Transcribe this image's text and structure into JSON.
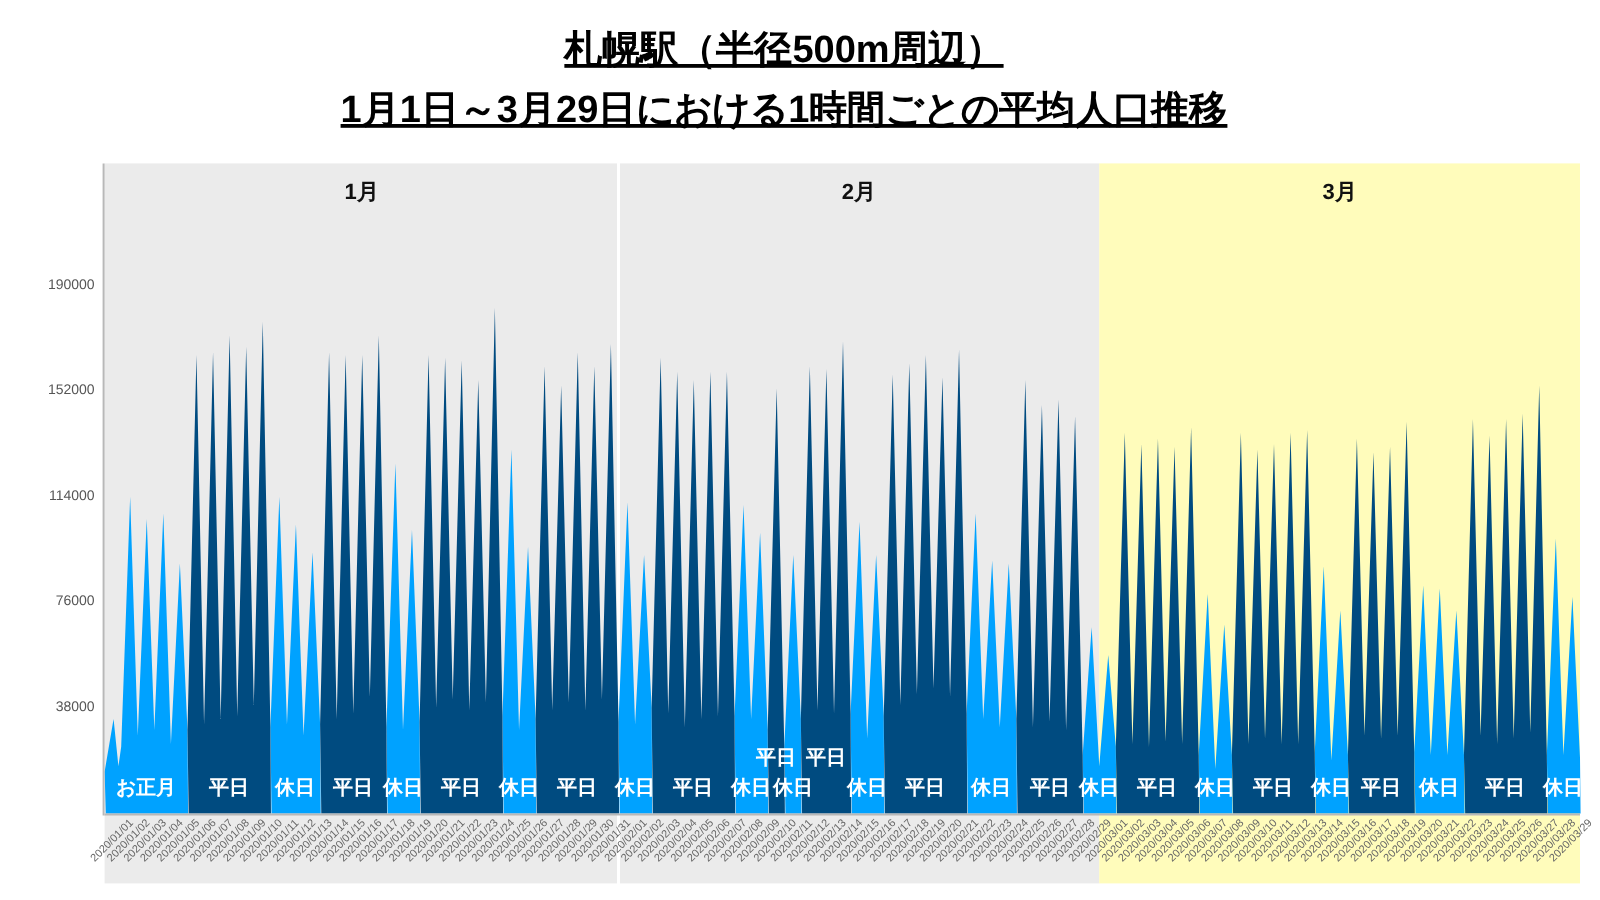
{
  "chart_data": {
    "type": "area",
    "title": "札幌駅（半径500m周辺）",
    "subtitle": "1月1日～3月29日における1時間ごとの平均人口推移",
    "xlim": [
      "2020-01-01T00:00",
      "2020-03-30T00:00"
    ],
    "ylim": [
      0,
      234000
    ],
    "yticks": [
      38000,
      76000,
      114000,
      152000,
      190000
    ],
    "xticks": [
      {
        "value": "2020-01-01T12:00",
        "label": "2020/01/01"
      },
      {
        "value": "2020-01-02T12:00",
        "label": "2020/01/02"
      },
      {
        "value": "2020-01-03T12:00",
        "label": "2020/01/03"
      },
      {
        "value": "2020-01-04T12:00",
        "label": "2020/01/04"
      },
      {
        "value": "2020-01-05T12:00",
        "label": "2020/01/05"
      },
      {
        "value": "2020-01-06T12:00",
        "label": "2020/01/06"
      },
      {
        "value": "2020-01-07T12:00",
        "label": "2020/01/07"
      },
      {
        "value": "2020-01-08T12:00",
        "label": "2020/01/08"
      },
      {
        "value": "2020-01-09T12:00",
        "label": "2020/01/09"
      },
      {
        "value": "2020-01-10T12:00",
        "label": "2020/01/10"
      },
      {
        "value": "2020-01-11T12:00",
        "label": "2020/01/11"
      },
      {
        "value": "2020-01-12T12:00",
        "label": "2020/01/12"
      },
      {
        "value": "2020-01-13T12:00",
        "label": "2020/01/13"
      },
      {
        "value": "2020-01-14T12:00",
        "label": "2020/01/14"
      },
      {
        "value": "2020-01-15T12:00",
        "label": "2020/01/15"
      },
      {
        "value": "2020-01-16T12:00",
        "label": "2020/01/16"
      },
      {
        "value": "2020-01-17T12:00",
        "label": "2020/01/17"
      },
      {
        "value": "2020-01-18T12:00",
        "label": "2020/01/18"
      },
      {
        "value": "2020-01-19T12:00",
        "label": "2020/01/19"
      },
      {
        "value": "2020-01-20T12:00",
        "label": "2020/01/20"
      },
      {
        "value": "2020-01-21T12:00",
        "label": "2020/01/21"
      },
      {
        "value": "2020-01-22T12:00",
        "label": "2020/01/22"
      },
      {
        "value": "2020-01-23T12:00",
        "label": "2020/01/23"
      },
      {
        "value": "2020-01-24T12:00",
        "label": "2020/01/24"
      },
      {
        "value": "2020-01-25T12:00",
        "label": "2020/01/25"
      },
      {
        "value": "2020-01-26T12:00",
        "label": "2020/01/26"
      },
      {
        "value": "2020-01-27T12:00",
        "label": "2020/01/27"
      },
      {
        "value": "2020-01-28T12:00",
        "label": "2020/01/28"
      },
      {
        "value": "2020-01-29T12:00",
        "label": "2020/01/29"
      },
      {
        "value": "2020-01-30T12:00",
        "label": "2020/01/30"
      },
      {
        "value": "2020-01-31T12:00",
        "label": "2020/01/31"
      },
      {
        "value": "2020-02-01T12:00",
        "label": "2020/02/01"
      },
      {
        "value": "2020-02-02T12:00",
        "label": "2020/02/02"
      },
      {
        "value": "2020-02-03T12:00",
        "label": "2020/02/03"
      },
      {
        "value": "2020-02-04T12:00",
        "label": "2020/02/04"
      },
      {
        "value": "2020-02-05T12:00",
        "label": "2020/02/05"
      },
      {
        "value": "2020-02-06T12:00",
        "label": "2020/02/06"
      },
      {
        "value": "2020-02-07T12:00",
        "label": "2020/02/07"
      },
      {
        "value": "2020-02-08T12:00",
        "label": "2020/02/08"
      },
      {
        "value": "2020-02-09T12:00",
        "label": "2020/02/09"
      },
      {
        "value": "2020-02-10T12:00",
        "label": "2020/02/10"
      },
      {
        "value": "2020-02-11T12:00",
        "label": "2020/02/11"
      },
      {
        "value": "2020-02-12T12:00",
        "label": "2020/02/12"
      },
      {
        "value": "2020-02-13T12:00",
        "label": "2020/02/13"
      },
      {
        "value": "2020-02-14T12:00",
        "label": "2020/02/14"
      },
      {
        "value": "2020-02-15T12:00",
        "label": "2020/02/15"
      },
      {
        "value": "2020-02-16T12:00",
        "label": "2020/02/16"
      },
      {
        "value": "2020-02-17T12:00",
        "label": "2020/02/17"
      },
      {
        "value": "2020-02-18T12:00",
        "label": "2020/02/18"
      },
      {
        "value": "2020-02-19T12:00",
        "label": "2020/02/19"
      },
      {
        "value": "2020-02-20T12:00",
        "label": "2020/02/20"
      },
      {
        "value": "2020-02-21T12:00",
        "label": "2020/02/21"
      },
      {
        "value": "2020-02-22T12:00",
        "label": "2020/02/22"
      },
      {
        "value": "2020-02-23T12:00",
        "label": "2020/02/23"
      },
      {
        "value": "2020-02-24T12:00",
        "label": "2020/02/24"
      },
      {
        "value": "2020-02-25T12:00",
        "label": "2020/02/25"
      },
      {
        "value": "2020-02-26T12:00",
        "label": "2020/02/26"
      },
      {
        "value": "2020-02-27T12:00",
        "label": "2020/02/27"
      },
      {
        "value": "2020-02-28T12:00",
        "label": "2020/02/28"
      },
      {
        "value": "2020-02-29T12:00",
        "label": "2020/02/29"
      },
      {
        "value": "2020-03-01T12:00",
        "label": "2020/03/01"
      },
      {
        "value": "2020-03-02T12:00",
        "label": "2020/03/02"
      },
      {
        "value": "2020-03-03T12:00",
        "label": "2020/03/03"
      },
      {
        "value": "2020-03-04T12:00",
        "label": "2020/03/04"
      },
      {
        "value": "2020-03-05T12:00",
        "label": "2020/03/05"
      },
      {
        "value": "2020-03-06T12:00",
        "label": "2020/03/06"
      },
      {
        "value": "2020-03-07T12:00",
        "label": "2020/03/07"
      },
      {
        "value": "2020-03-08T12:00",
        "label": "2020/03/08"
      },
      {
        "value": "2020-03-09T12:00",
        "label": "2020/03/09"
      },
      {
        "value": "2020-03-10T12:00",
        "label": "2020/03/10"
      },
      {
        "value": "2020-03-11T12:00",
        "label": "2020/03/11"
      },
      {
        "value": "2020-03-12T12:00",
        "label": "2020/03/12"
      },
      {
        "value": "2020-03-13T12:00",
        "label": "2020/03/13"
      },
      {
        "value": "2020-03-14T12:00",
        "label": "2020/03/14"
      },
      {
        "value": "2020-03-15T12:00",
        "label": "2020/03/15"
      },
      {
        "value": "2020-03-16T12:00",
        "label": "2020/03/16"
      },
      {
        "value": "2020-03-17T12:00",
        "label": "2020/03/17"
      },
      {
        "value": "2020-03-18T12:00",
        "label": "2020/03/18"
      },
      {
        "value": "2020-03-19T12:00",
        "label": "2020/03/19"
      },
      {
        "value": "2020-03-20T12:00",
        "label": "2020/03/20"
      },
      {
        "value": "2020-03-21T12:00",
        "label": "2020/03/21"
      },
      {
        "value": "2020-03-22T12:00",
        "label": "2020/03/22"
      },
      {
        "value": "2020-03-23T12:00",
        "label": "2020/03/23"
      },
      {
        "value": "2020-03-24T12:00",
        "label": "2020/03/24"
      },
      {
        "value": "2020-03-25T12:00",
        "label": "2020/03/25"
      },
      {
        "value": "2020-03-26T12:00",
        "label": "2020/03/26"
      },
      {
        "value": "2020-03-27T12:00",
        "label": "2020/03/27"
      },
      {
        "value": "2020-03-28T12:00",
        "label": "2020/03/28"
      },
      {
        "value": "2020-03-29T12:00",
        "label": "2020/03/29"
      }
    ],
    "bands": [
      {
        "axis": "x",
        "from": "2020-01-01T00:00",
        "to": "2020-02-01T00:00",
        "label": "1月",
        "color": "#ebebeb"
      },
      {
        "axis": "x",
        "from": "2020-02-01T00:00",
        "to": "2020-03-01T00:00",
        "label": "2月",
        "color": "#ebebeb"
      },
      {
        "axis": "x",
        "from": "2020-03-01T00:00",
        "to": "2020-03-30T00:00",
        "label": "3月",
        "color": "#fffcbb"
      }
    ],
    "x": [
      "2020-01-01T00:00",
      "2020-01-01T13:00",
      "2020-01-01T20:00",
      "2020-01-02T00:00",
      "2020-01-02T13:00",
      "2020-01-03T00:00",
      "2020-01-03T13:00",
      "2020-01-04T00:00",
      "2020-01-04T13:00",
      "2020-01-05T00:00",
      "2020-01-05T13:00",
      "2020-01-06T00:00",
      "2020-01-06T13:00",
      "2020-01-07T00:00",
      "2020-01-07T13:00",
      "2020-01-08T00:00",
      "2020-01-08T13:00",
      "2020-01-09T00:00",
      "2020-01-09T13:00",
      "2020-01-10T00:00",
      "2020-01-10T13:00",
      "2020-01-11T00:00",
      "2020-01-11T13:00",
      "2020-01-12T00:00",
      "2020-01-12T13:00",
      "2020-01-13T00:00",
      "2020-01-13T13:00",
      "2020-01-14T00:00",
      "2020-01-14T13:00",
      "2020-01-15T00:00",
      "2020-01-15T13:00",
      "2020-01-16T00:00",
      "2020-01-16T13:00",
      "2020-01-17T00:00",
      "2020-01-17T13:00",
      "2020-01-18T00:00",
      "2020-01-18T13:00",
      "2020-01-19T00:00",
      "2020-01-19T13:00",
      "2020-01-20T00:00",
      "2020-01-20T13:00",
      "2020-01-21T00:00",
      "2020-01-21T13:00",
      "2020-01-22T00:00",
      "2020-01-22T13:00",
      "2020-01-23T00:00",
      "2020-01-23T13:00",
      "2020-01-24T00:00",
      "2020-01-24T13:00",
      "2020-01-25T00:00",
      "2020-01-25T13:00",
      "2020-01-26T00:00",
      "2020-01-26T13:00",
      "2020-01-27T00:00",
      "2020-01-27T13:00",
      "2020-01-28T00:00",
      "2020-01-28T13:00",
      "2020-01-29T00:00",
      "2020-01-29T13:00",
      "2020-01-30T00:00",
      "2020-01-30T13:00",
      "2020-01-31T00:00",
      "2020-01-31T13:00",
      "2020-02-01T00:00",
      "2020-02-01T13:00",
      "2020-02-02T00:00",
      "2020-02-02T13:00",
      "2020-02-03T00:00",
      "2020-02-03T13:00",
      "2020-02-04T00:00",
      "2020-02-04T13:00",
      "2020-02-05T00:00",
      "2020-02-05T13:00",
      "2020-02-06T00:00",
      "2020-02-06T13:00",
      "2020-02-07T00:00",
      "2020-02-07T13:00",
      "2020-02-08T00:00",
      "2020-02-08T13:00",
      "2020-02-09T00:00",
      "2020-02-09T13:00",
      "2020-02-10T00:00",
      "2020-02-10T13:00",
      "2020-02-11T00:00",
      "2020-02-11T13:00",
      "2020-02-12T00:00",
      "2020-02-12T13:00",
      "2020-02-13T00:00",
      "2020-02-13T13:00",
      "2020-02-14T00:00",
      "2020-02-14T13:00",
      "2020-02-15T00:00",
      "2020-02-15T13:00",
      "2020-02-16T00:00",
      "2020-02-16T13:00",
      "2020-02-17T00:00",
      "2020-02-17T13:00",
      "2020-02-18T00:00",
      "2020-02-18T13:00",
      "2020-02-19T00:00",
      "2020-02-19T13:00",
      "2020-02-20T00:00",
      "2020-02-20T13:00",
      "2020-02-21T00:00",
      "2020-02-21T13:00",
      "2020-02-22T00:00",
      "2020-02-22T13:00",
      "2020-02-23T00:00",
      "2020-02-23T13:00",
      "2020-02-24T00:00",
      "2020-02-24T13:00",
      "2020-02-25T00:00",
      "2020-02-25T13:00",
      "2020-02-26T00:00",
      "2020-02-26T13:00",
      "2020-02-27T00:00",
      "2020-02-27T13:00",
      "2020-02-28T00:00",
      "2020-02-28T13:00",
      "2020-02-29T00:00",
      "2020-02-29T13:00",
      "2020-03-01T00:00",
      "2020-03-01T13:00",
      "2020-03-02T00:00",
      "2020-03-02T13:00",
      "2020-03-03T00:00",
      "2020-03-03T13:00",
      "2020-03-04T00:00",
      "2020-03-04T13:00",
      "2020-03-05T00:00",
      "2020-03-05T13:00",
      "2020-03-06T00:00",
      "2020-03-06T13:00",
      "2020-03-07T00:00",
      "2020-03-07T13:00",
      "2020-03-08T00:00",
      "2020-03-08T13:00",
      "2020-03-09T00:00",
      "2020-03-09T13:00",
      "2020-03-10T00:00",
      "2020-03-10T13:00",
      "2020-03-11T00:00",
      "2020-03-11T13:00",
      "2020-03-12T00:00",
      "2020-03-12T13:00",
      "2020-03-13T00:00",
      "2020-03-13T13:00",
      "2020-03-14T00:00",
      "2020-03-14T13:00",
      "2020-03-15T00:00",
      "2020-03-15T13:00",
      "2020-03-16T00:00",
      "2020-03-16T13:00",
      "2020-03-17T00:00",
      "2020-03-17T13:00",
      "2020-03-18T00:00",
      "2020-03-18T13:00",
      "2020-03-19T00:00",
      "2020-03-19T13:00",
      "2020-03-20T00:00",
      "2020-03-20T13:00",
      "2020-03-21T00:00",
      "2020-03-21T13:00",
      "2020-03-22T00:00",
      "2020-03-22T13:00",
      "2020-03-23T00:00",
      "2020-03-23T13:00",
      "2020-03-24T00:00",
      "2020-03-24T13:00",
      "2020-03-25T00:00",
      "2020-03-25T13:00",
      "2020-03-26T00:00",
      "2020-03-26T13:00",
      "2020-03-27T00:00",
      "2020-03-27T13:00",
      "2020-03-28T00:00",
      "2020-03-28T13:00",
      "2020-03-29T00:00",
      "2020-03-29T13:00",
      "2020-03-30T00:00"
    ],
    "series": [
      {
        "color": "#00a2ff",
        "values": [
          15000,
          34000,
          17000,
          24000,
          114000,
          28000,
          106000,
          30000,
          108000,
          25000,
          90000,
          30000,
          null,
          null,
          null,
          null,
          null,
          null,
          null,
          null,
          null,
          31000,
          114000,
          32000,
          104000,
          28000,
          94000,
          32000,
          null,
          null,
          null,
          null,
          null,
          null,
          null,
          31000,
          126000,
          30000,
          102000,
          33000,
          null,
          null,
          null,
          null,
          null,
          null,
          null,
          null,
          null,
          35000,
          131000,
          30000,
          96000,
          34000,
          null,
          null,
          null,
          null,
          null,
          null,
          null,
          null,
          null,
          33000,
          112000,
          32000,
          93000,
          38000,
          null,
          null,
          null,
          null,
          null,
          null,
          null,
          null,
          null,
          35000,
          111000,
          34000,
          101000,
          30000,
          null,
          24000,
          93000,
          34000,
          null,
          null,
          null,
          null,
          null,
          36000,
          105000,
          27000,
          93000,
          35000,
          null,
          null,
          null,
          null,
          null,
          null,
          null,
          null,
          null,
          36000,
          108000,
          34000,
          91000,
          31000,
          90000,
          34000,
          null,
          null,
          null,
          null,
          null,
          null,
          null,
          21000,
          67000,
          17000,
          57000,
          24000,
          null,
          null,
          null,
          null,
          null,
          null,
          null,
          null,
          null,
          21000,
          79000,
          16000,
          68000,
          21000,
          null,
          null,
          null,
          null,
          null,
          null,
          null,
          null,
          null,
          22000,
          89000,
          19000,
          73000,
          21000,
          null,
          null,
          null,
          null,
          null,
          null,
          null,
          22000,
          82000,
          21000,
          81000,
          21000,
          73000,
          21000,
          null,
          null,
          null,
          null,
          null,
          null,
          null,
          null,
          null,
          21000,
          99000,
          21000,
          78000,
          20000
        ]
      },
      {
        "color": "#004b80",
        "values": [
          null,
          null,
          null,
          null,
          null,
          null,
          null,
          null,
          null,
          null,
          null,
          30000,
          165000,
          32000,
          166000,
          34000,
          172000,
          35000,
          168000,
          39000,
          177000,
          31000,
          null,
          null,
          null,
          null,
          null,
          32000,
          166000,
          34000,
          165000,
          36000,
          165000,
          42000,
          172000,
          31000,
          null,
          null,
          null,
          33000,
          165000,
          38000,
          164000,
          41000,
          163000,
          37000,
          156000,
          40000,
          182000,
          35000,
          null,
          null,
          null,
          34000,
          161000,
          37000,
          154000,
          40000,
          166000,
          37000,
          161000,
          41000,
          169000,
          33000,
          null,
          null,
          null,
          38000,
          164000,
          36000,
          159000,
          31000,
          156000,
          34000,
          159000,
          35000,
          159000,
          35000,
          null,
          null,
          null,
          30000,
          153000,
          24000,
          null,
          34000,
          161000,
          37000,
          160000,
          36000,
          170000,
          36000,
          null,
          null,
          null,
          35000,
          158000,
          39000,
          162000,
          43000,
          165000,
          45000,
          157000,
          42000,
          167000,
          36000,
          null,
          null,
          null,
          null,
          null,
          34000,
          156000,
          31000,
          147000,
          33000,
          149000,
          30000,
          143000,
          21000,
          null,
          null,
          null,
          24000,
          137000,
          25000,
          133000,
          24000,
          135000,
          26000,
          132000,
          25000,
          139000,
          21000,
          null,
          null,
          null,
          21000,
          137000,
          25000,
          131000,
          27000,
          133000,
          25000,
          137000,
          25000,
          138000,
          22000,
          null,
          null,
          null,
          21000,
          135000,
          28000,
          130000,
          27000,
          132000,
          28000,
          141000,
          22000,
          null,
          null,
          null,
          null,
          null,
          21000,
          142000,
          28000,
          136000,
          25000,
          142000,
          27000,
          144000,
          29000,
          154000,
          21000,
          null,
          null,
          null,
          null
        ]
      }
    ],
    "annotations": [
      "お正月",
      "平日",
      "休日",
      "平日",
      "休日",
      "平日",
      "休日",
      "平日",
      "休日",
      "平日",
      "休日",
      "平日",
      "休日",
      "平日",
      "休日",
      "平日",
      "休日",
      "平日",
      "休日",
      "平日",
      "休日",
      "平日",
      "休日",
      "平日",
      "休日",
      "平日",
      "休日"
    ]
  }
}
